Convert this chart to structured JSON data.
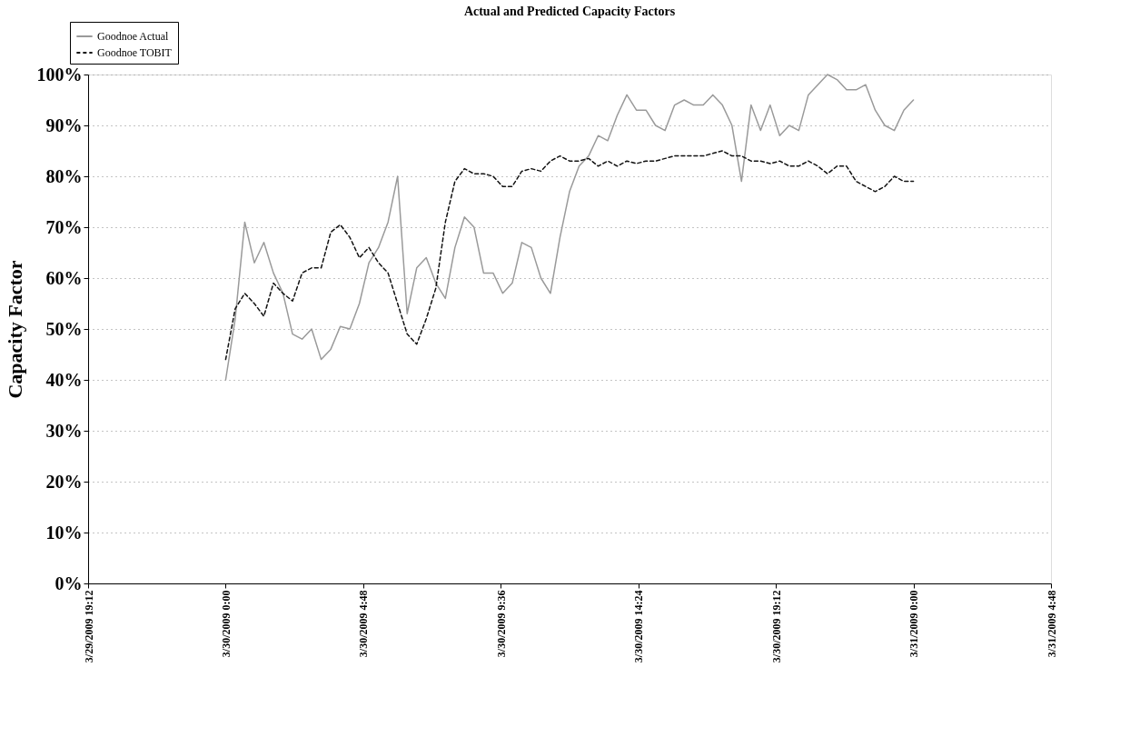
{
  "chart_data": {
    "type": "line",
    "title": "Actual and Predicted Capacity Factors",
    "ylabel": "Capacity Factor",
    "x": [
      "2009-03-30T00:00",
      "2009-03-30T00:20",
      "2009-03-30T00:40",
      "2009-03-30T01:00",
      "2009-03-30T01:20",
      "2009-03-30T01:40",
      "2009-03-30T02:00",
      "2009-03-30T02:20",
      "2009-03-30T02:40",
      "2009-03-30T03:00",
      "2009-03-30T03:20",
      "2009-03-30T03:40",
      "2009-03-30T04:00",
      "2009-03-30T04:20",
      "2009-03-30T04:40",
      "2009-03-30T05:00",
      "2009-03-30T05:20",
      "2009-03-30T05:40",
      "2009-03-30T06:00",
      "2009-03-30T06:20",
      "2009-03-30T06:40",
      "2009-03-30T07:00",
      "2009-03-30T07:20",
      "2009-03-30T07:40",
      "2009-03-30T08:00",
      "2009-03-30T08:20",
      "2009-03-30T08:40",
      "2009-03-30T09:00",
      "2009-03-30T09:20",
      "2009-03-30T09:40",
      "2009-03-30T10:00",
      "2009-03-30T10:20",
      "2009-03-30T10:40",
      "2009-03-30T11:00",
      "2009-03-30T11:20",
      "2009-03-30T11:40",
      "2009-03-30T12:00",
      "2009-03-30T12:20",
      "2009-03-30T12:40",
      "2009-03-30T13:00",
      "2009-03-30T13:20",
      "2009-03-30T13:40",
      "2009-03-30T14:00",
      "2009-03-30T14:20",
      "2009-03-30T14:40",
      "2009-03-30T15:00",
      "2009-03-30T15:20",
      "2009-03-30T15:40",
      "2009-03-30T16:00",
      "2009-03-30T16:20",
      "2009-03-30T16:40",
      "2009-03-30T17:00",
      "2009-03-30T17:20",
      "2009-03-30T17:40",
      "2009-03-30T18:00",
      "2009-03-30T18:20",
      "2009-03-30T18:40",
      "2009-03-30T19:00",
      "2009-03-30T19:20",
      "2009-03-30T19:40",
      "2009-03-30T20:00",
      "2009-03-30T20:20",
      "2009-03-30T20:40",
      "2009-03-30T21:00",
      "2009-03-30T21:20",
      "2009-03-30T21:40",
      "2009-03-30T22:00",
      "2009-03-30T22:20",
      "2009-03-30T22:40",
      "2009-03-30T23:00",
      "2009-03-30T23:20",
      "2009-03-30T23:40",
      "2009-03-31T00:00"
    ],
    "series": [
      {
        "name": "Goodnoe Actual",
        "color": "#9a9a9a",
        "line_style": "solid",
        "values": [
          40,
          52,
          71,
          63,
          67,
          61,
          57,
          49,
          48,
          50,
          44,
          46,
          50.5,
          50,
          55,
          63,
          66,
          71,
          80,
          53,
          62,
          64,
          59,
          56,
          66,
          72,
          70,
          61,
          61,
          57,
          59,
          67,
          66,
          60,
          57,
          68,
          77,
          82,
          84,
          88,
          87,
          92,
          96,
          93,
          93,
          90,
          89,
          94,
          95,
          94,
          94,
          96,
          94,
          90,
          79,
          94,
          89,
          94,
          88,
          90,
          89,
          96,
          98,
          100,
          99,
          97,
          97,
          98,
          93,
          90,
          89,
          93,
          95
        ]
      },
      {
        "name": "Goodnoe TOBIT",
        "color": "#111111",
        "line_style": "dashed",
        "values": [
          44,
          54,
          57,
          55,
          52.5,
          59,
          57,
          55.5,
          61,
          62,
          62,
          69,
          70.5,
          68,
          64,
          66,
          63,
          61,
          55,
          49,
          47,
          52,
          58,
          71,
          79,
          81.5,
          80.5,
          80.5,
          80,
          78,
          78,
          81,
          81.5,
          81,
          83,
          84,
          83,
          83,
          83.5,
          82,
          83,
          82,
          83,
          82.5,
          83,
          83,
          83.5,
          84,
          84,
          84,
          84,
          84.5,
          85,
          84,
          84,
          83,
          83,
          82.5,
          83,
          82,
          82,
          83,
          82,
          80.5,
          82,
          82,
          79,
          78,
          77,
          78,
          80,
          79,
          79
        ]
      }
    ],
    "xlim": [
      "2009-03-29T19:12",
      "2009-03-31T04:48"
    ],
    "xticks": [
      {
        "value": "2009-03-29T19:12",
        "label": "3/29/2009 19:12"
      },
      {
        "value": "2009-03-30T00:00",
        "label": "3/30/2009 0:00"
      },
      {
        "value": "2009-03-30T04:48",
        "label": "3/30/2009 4:48"
      },
      {
        "value": "2009-03-30T09:36",
        "label": "3/30/2009 9:36"
      },
      {
        "value": "2009-03-30T14:24",
        "label": "3/30/2009 14:24"
      },
      {
        "value": "2009-03-30T19:12",
        "label": "3/30/2009 19:12"
      },
      {
        "value": "2009-03-31T00:00",
        "label": "3/31/2009 0:00"
      },
      {
        "value": "2009-03-31T04:48",
        "label": "3/31/2009 4:48"
      }
    ],
    "ylim": [
      0,
      100
    ],
    "yticks": [
      {
        "value": 0,
        "label": "0%"
      },
      {
        "value": 10,
        "label": "10%"
      },
      {
        "value": 20,
        "label": "20%"
      },
      {
        "value": 30,
        "label": "30%"
      },
      {
        "value": 40,
        "label": "40%"
      },
      {
        "value": 50,
        "label": "50%"
      },
      {
        "value": 60,
        "label": "60%"
      },
      {
        "value": 70,
        "label": "70%"
      },
      {
        "value": 80,
        "label": "80%"
      },
      {
        "value": 90,
        "label": "90%"
      },
      {
        "value": 100,
        "label": "100%"
      }
    ],
    "grid": "y",
    "legend": "top left",
    "marker": "none"
  }
}
